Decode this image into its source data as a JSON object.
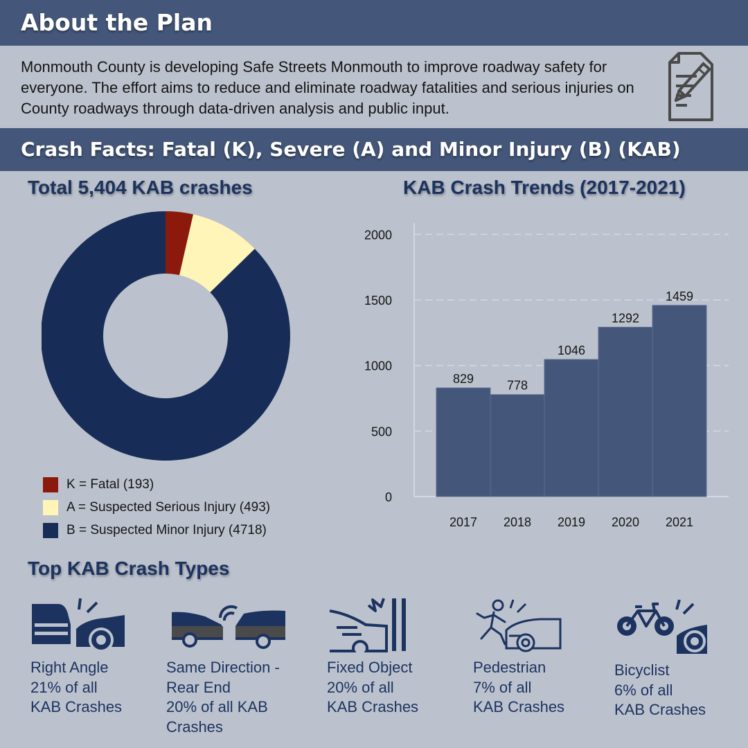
{
  "header": {
    "title": "About the Plan"
  },
  "about": {
    "text": "Monmouth County is developing Safe Streets Monmouth to improve roadway safety for everyone. The effort aims to reduce and eliminate roadway fatalities and serious injuries on County roadways through data-driven analysis and public input."
  },
  "facts_header": {
    "title": "Crash Facts: Fatal (K), Severe (A)  and Minor Injury (B)  (KAB)"
  },
  "colors": {
    "fatal": "#8b1a0d",
    "serious": "#fff5b8",
    "minor": "#172d57",
    "bar": "#44577a",
    "banner": "#44577a",
    "background": "#bcc2cd"
  },
  "chart_data": [
    {
      "type": "pie",
      "title": "Total 5,404 KAB crashes",
      "hole": true,
      "categories": [
        "K = Fatal (193)",
        "A = Suspected Serious Injury (493)",
        "B = Suspected Minor Injury (4718)"
      ],
      "values": [
        193,
        493,
        4718
      ],
      "legend": "bottom-left"
    },
    {
      "type": "bar",
      "title": "KAB Crash Trends (2017-2021)",
      "categories": [
        "2017",
        "2018",
        "2019",
        "2020",
        "2021"
      ],
      "values": [
        829,
        778,
        1046,
        1292,
        1459
      ],
      "yticks": [
        0,
        500,
        1000,
        1500,
        2000
      ],
      "ylim": [
        0,
        2150
      ],
      "grid": true,
      "xlabel": "",
      "ylabel": ""
    }
  ],
  "crash_types": {
    "title": "Top KAB Crash Types",
    "items": [
      {
        "label": "Right Angle\n21% of all\nKAB Crashes",
        "icon": "right-angle-crash-icon"
      },
      {
        "label": "Same Direction -\nRear End\n20% of all KAB\nCrashes",
        "icon": "rear-end-crash-icon"
      },
      {
        "label": "Fixed Object\n20% of all\nKAB Crashes",
        "icon": "fixed-object-crash-icon"
      },
      {
        "label": "Pedestrian\n7% of all\nKAB Crashes",
        "icon": "pedestrian-crash-icon"
      },
      {
        "label": "Bicyclist\n6% of all\nKAB Crashes",
        "icon": "bicyclist-crash-icon"
      }
    ]
  }
}
